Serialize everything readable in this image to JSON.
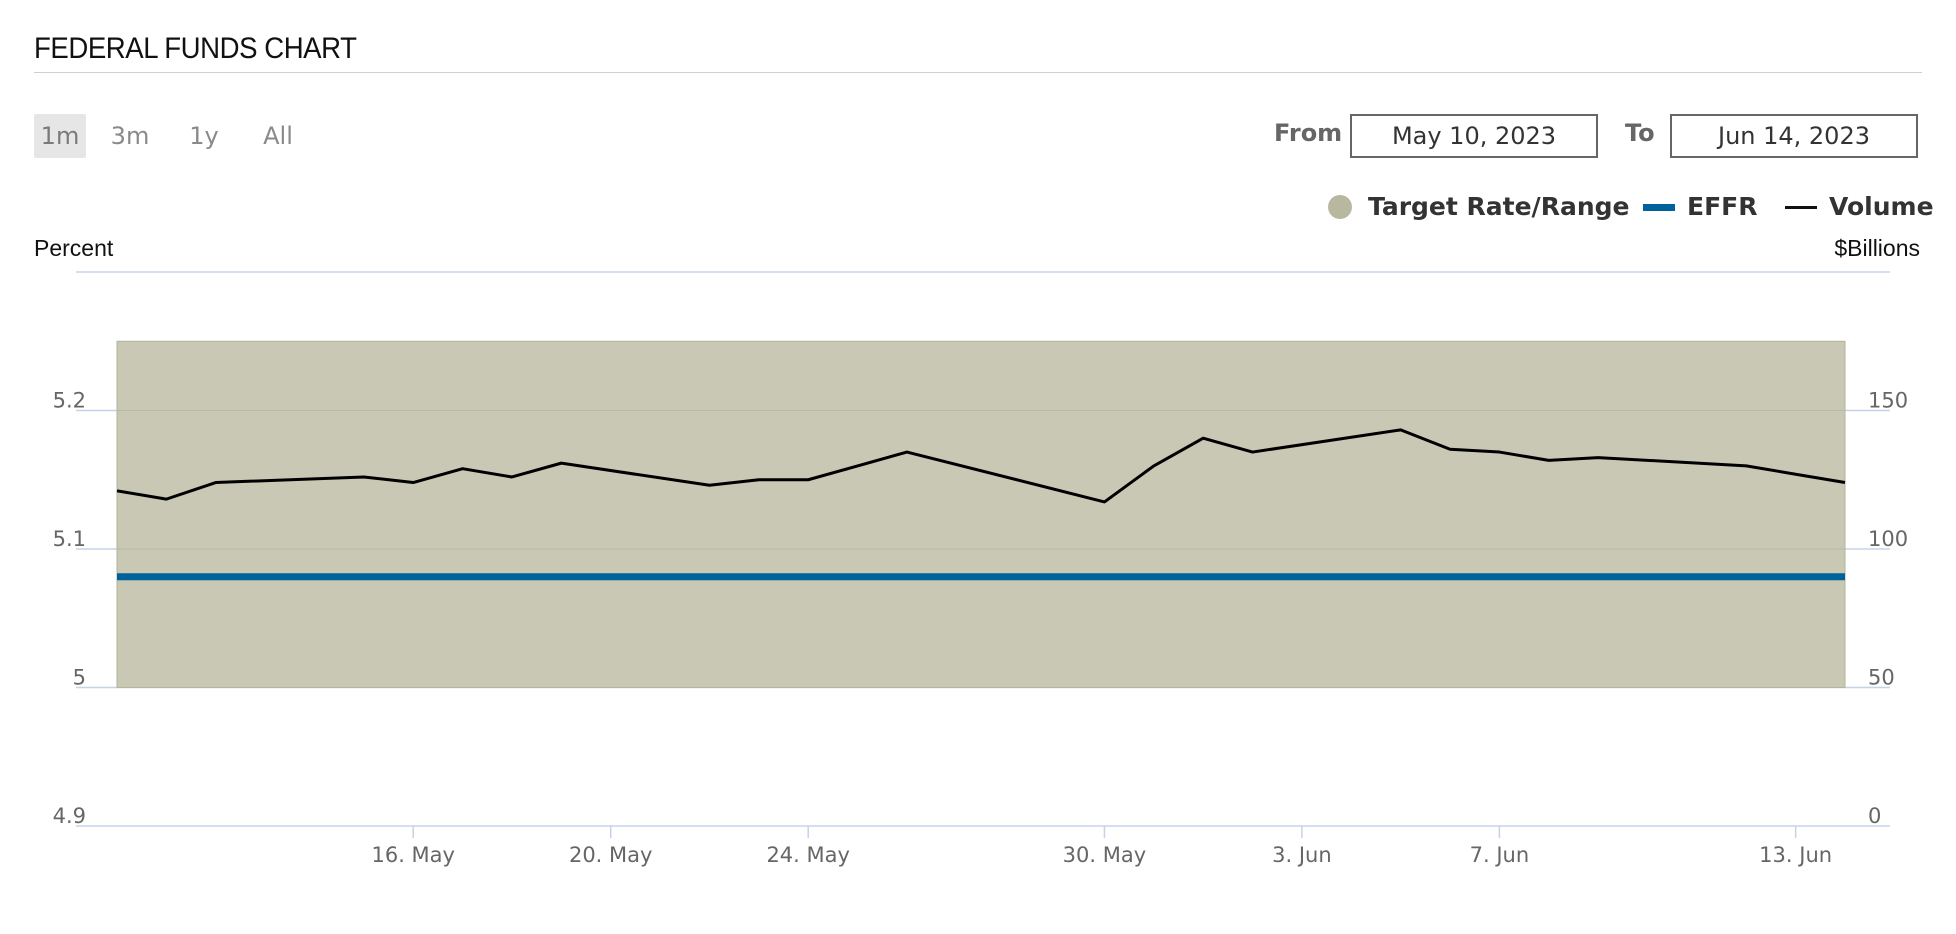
{
  "title": "FEDERAL FUNDS CHART",
  "range_buttons": [
    {
      "label": "1m",
      "active": true
    },
    {
      "label": "3m",
      "active": false
    },
    {
      "label": "1y",
      "active": false
    },
    {
      "label": "All",
      "active": false
    }
  ],
  "date_range": {
    "from_label": "From",
    "from_value": "May 10, 2023",
    "to_label": "To",
    "to_value": "Jun 14, 2023"
  },
  "legend": [
    {
      "label": "Target Rate/Range",
      "symbol": "circle",
      "color": "#b8b8a0"
    },
    {
      "label": "EFFR",
      "symbol": "bar",
      "color": "#00629b"
    },
    {
      "label": "Volume",
      "symbol": "line",
      "color": "#111111"
    }
  ],
  "colors": {
    "target_fill": "#c8c8b4",
    "target_edge": "#b5b59a",
    "effr": "#00629b",
    "volume": "#000000",
    "gridline": "#c5d3e8"
  },
  "chart_data": {
    "type": "line",
    "title": "FEDERAL FUNDS CHART",
    "y_left_label": "Percent",
    "y_right_label": "$Billions",
    "y_left_ticks": [
      "4.9",
      "5",
      "5.1",
      "5.2"
    ],
    "y_right_ticks": [
      "0",
      "50",
      "100",
      "150"
    ],
    "y_left_range": [
      4.9,
      5.3
    ],
    "y_right_range": [
      0,
      200
    ],
    "x_tick_labels": [
      {
        "date": "2023-05-16",
        "label": "16. May"
      },
      {
        "date": "2023-05-20",
        "label": "20. May"
      },
      {
        "date": "2023-05-24",
        "label": "24. May"
      },
      {
        "date": "2023-05-30",
        "label": "30. May"
      },
      {
        "date": "2023-06-03",
        "label": "3. Jun"
      },
      {
        "date": "2023-06-07",
        "label": "7. Jun"
      },
      {
        "date": "2023-06-13",
        "label": "13. Jun"
      }
    ],
    "dates": [
      "2023-05-10",
      "2023-05-11",
      "2023-05-12",
      "2023-05-15",
      "2023-05-16",
      "2023-05-17",
      "2023-05-18",
      "2023-05-19",
      "2023-05-22",
      "2023-05-23",
      "2023-05-24",
      "2023-05-25",
      "2023-05-26",
      "2023-05-30",
      "2023-05-31",
      "2023-06-01",
      "2023-06-02",
      "2023-06-05",
      "2023-06-06",
      "2023-06-07",
      "2023-06-08",
      "2023-06-09",
      "2023-06-12",
      "2023-06-13",
      "2023-06-14"
    ],
    "series": [
      {
        "name": "Target Rate/Range",
        "type": "range",
        "lower": 5.0,
        "upper": 5.25
      },
      {
        "name": "EFFR",
        "axis": "left",
        "values": [
          5.08,
          5.08,
          5.08,
          5.08,
          5.08,
          5.08,
          5.08,
          5.08,
          5.08,
          5.08,
          5.08,
          5.08,
          5.08,
          5.08,
          5.08,
          5.08,
          5.08,
          5.08,
          5.08,
          5.08,
          5.08,
          5.08,
          5.08,
          5.08,
          5.08
        ]
      },
      {
        "name": "Volume",
        "axis": "right",
        "values": [
          121,
          118,
          124,
          126,
          124,
          129,
          126,
          131,
          123,
          125,
          125,
          130,
          135,
          117,
          130,
          140,
          135,
          143,
          136,
          135,
          132,
          133,
          130,
          127,
          124
        ]
      }
    ]
  }
}
